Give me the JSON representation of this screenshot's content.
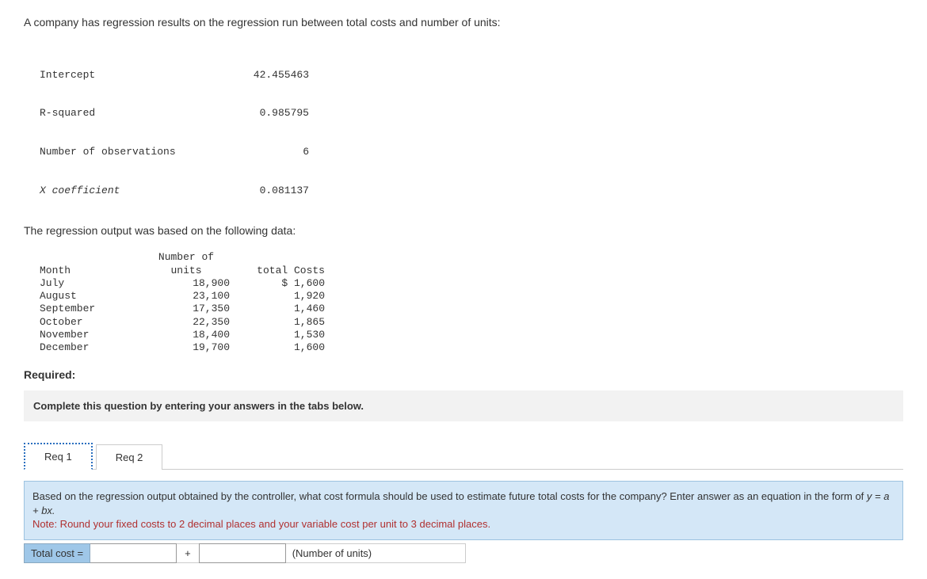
{
  "intro": "A company has regression results on the regression run between total costs and number of units:",
  "regression_stats": {
    "rows": [
      {
        "label": "Intercept",
        "value": "42.455463"
      },
      {
        "label": "R-squared",
        "value": "0.985795"
      },
      {
        "label": "Number of observations",
        "value": "6"
      },
      {
        "label": "X coefficient",
        "value": "0.081137"
      }
    ],
    "font_family": "Courier New",
    "font_size_pt": 10
  },
  "subtext": "The regression output was based on the following data:",
  "data_table": {
    "header_top": "Number of",
    "headers": {
      "month": "Month",
      "units": "units",
      "costs": "total Costs"
    },
    "rows": [
      {
        "month": "July",
        "units": "18,900",
        "costs": "$ 1,600"
      },
      {
        "month": "August",
        "units": "23,100",
        "costs": "1,920"
      },
      {
        "month": "September",
        "units": "17,350",
        "costs": "1,460"
      },
      {
        "month": "October",
        "units": "22,350",
        "costs": "1,865"
      },
      {
        "month": "November",
        "units": "18,400",
        "costs": "1,530"
      },
      {
        "month": "December",
        "units": "19,700",
        "costs": "1,600"
      }
    ]
  },
  "required_label": "Required:",
  "instruction": "Complete this question by entering your answers in the tabs below.",
  "tabs": [
    {
      "label": "Req 1",
      "active": true
    },
    {
      "label": "Req 2",
      "active": false
    }
  ],
  "question": {
    "line1": "Based on the regression output obtained by the controller, what cost formula should be used to estimate future total costs for the company? Enter answer as an equation in the form of ",
    "formula": "y = a + bx.",
    "note": "Note: Round your fixed costs to 2 decimal places and your variable cost per unit to 3 decimal places.",
    "bg_color": "#d4e7f7",
    "note_color": "#b03030"
  },
  "answer_bar": {
    "label": "Total cost =",
    "plus": "+",
    "units_label": "(Number of units)",
    "label_bg": "#9fc7e8"
  }
}
